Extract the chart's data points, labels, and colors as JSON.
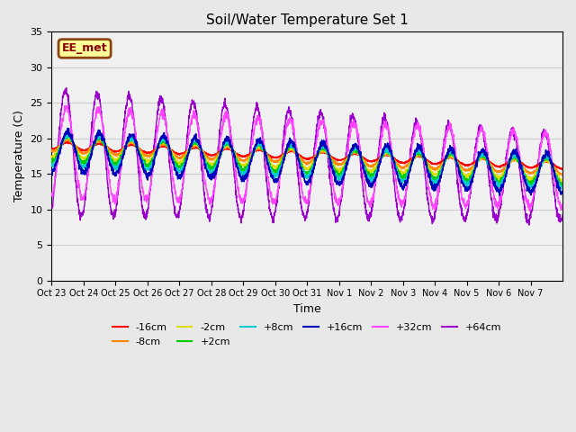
{
  "title": "Soil/Water Temperature Set 1",
  "xlabel": "Time",
  "ylabel": "Temperature (C)",
  "ylim": [
    0,
    35
  ],
  "yticks": [
    0,
    5,
    10,
    15,
    20,
    25,
    30,
    35
  ],
  "x_labels": [
    "Oct 23",
    "Oct 24",
    "Oct 25",
    "Oct 26",
    "Oct 27",
    "Oct 28",
    "Oct 29",
    "Oct 30",
    "Oct 31",
    "Nov 1",
    "Nov 2",
    "Nov 3",
    "Nov 4",
    "Nov 5",
    "Nov 6",
    "Nov 7"
  ],
  "annotation_text": "EE_met",
  "series_colors": {
    "-16cm": "#FF0000",
    "-8cm": "#FF8800",
    "-2cm": "#DDDD00",
    "+2cm": "#00CC00",
    "+8cm": "#00CCCC",
    "+16cm": "#0000BB",
    "+32cm": "#FF44FF",
    "+64cm": "#9900CC"
  },
  "bg_color": "#E8E8E8",
  "plot_bg_color": "#F0F0F0"
}
